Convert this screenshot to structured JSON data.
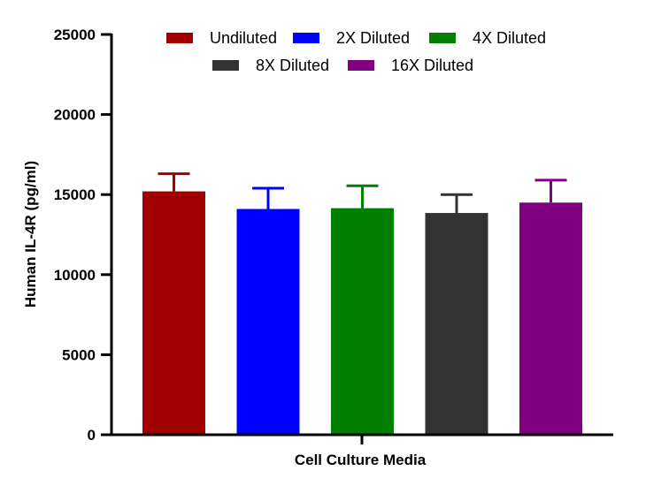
{
  "chart_data": {
    "type": "bar",
    "title": "",
    "xlabel": "Cell Culture Media",
    "ylabel": "Human IL-4R (pg/ml)",
    "ylim": [
      0,
      25000
    ],
    "yticks": [
      0,
      5000,
      10000,
      15000,
      20000,
      25000
    ],
    "grid": false,
    "legend_position": "top",
    "series": [
      {
        "name": "Undiluted",
        "value": 15200,
        "error": 1100,
        "color": "#A10000"
      },
      {
        "name": "2X Diluted",
        "value": 14100,
        "error": 1300,
        "color": "#0000FF"
      },
      {
        "name": "4X Diluted",
        "value": 14150,
        "error": 1400,
        "color": "#007F00"
      },
      {
        "name": "8X Diluted",
        "value": 13850,
        "error": 1150,
        "color": "#333333"
      },
      {
        "name": "16X Diluted",
        "value": 14500,
        "error": 1400,
        "color": "#800080"
      }
    ]
  }
}
